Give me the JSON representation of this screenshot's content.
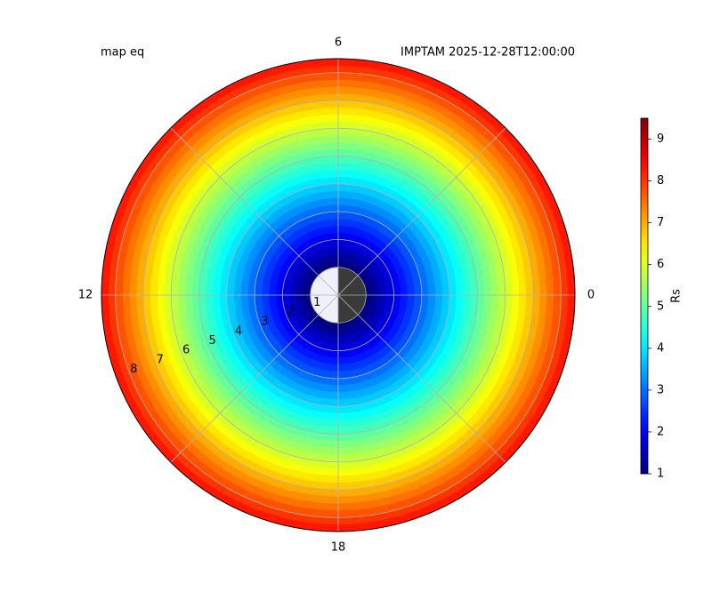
{
  "chart_data": {
    "type": "polar",
    "title_left": "map eq",
    "title_right": "IMPTAM 2025-12-28T12:00:00",
    "colormap": "jet",
    "colorbar_label": "Rs",
    "clim": [
      1,
      9.5
    ],
    "cticks": [
      1,
      2,
      3,
      4,
      5,
      6,
      7,
      8,
      9
    ],
    "xlim": [
      0,
      24
    ],
    "xticks": [
      0,
      6,
      12,
      18
    ],
    "xgrid": [
      0,
      3,
      6,
      9,
      12,
      15,
      18,
      21
    ],
    "ylim": [
      0,
      8.5
    ],
    "yticks": [
      1,
      2,
      3,
      4,
      5,
      6,
      7,
      8
    ],
    "grid": true,
    "field": {
      "r": [
        1,
        1.25,
        1.5,
        1.75,
        2,
        2.25,
        2.5,
        2.75,
        3,
        3.25,
        3.5,
        3.75,
        4,
        4.25,
        4.5,
        4.75,
        5,
        5.25,
        5.5,
        5.75,
        6,
        6.25,
        6.5,
        6.75,
        7,
        7.25,
        7.5,
        7.75,
        8,
        8.25,
        8.5
      ],
      "values": [
        1,
        1.25,
        1.5,
        1.75,
        2,
        2.25,
        2.5,
        2.75,
        3,
        3.25,
        3.5,
        3.75,
        4,
        4.25,
        4.5,
        4.75,
        5,
        5.25,
        5.5,
        5.75,
        6,
        6.25,
        6.5,
        6.75,
        7,
        7.25,
        7.5,
        7.75,
        8,
        8.25,
        8.5
      ]
    }
  }
}
